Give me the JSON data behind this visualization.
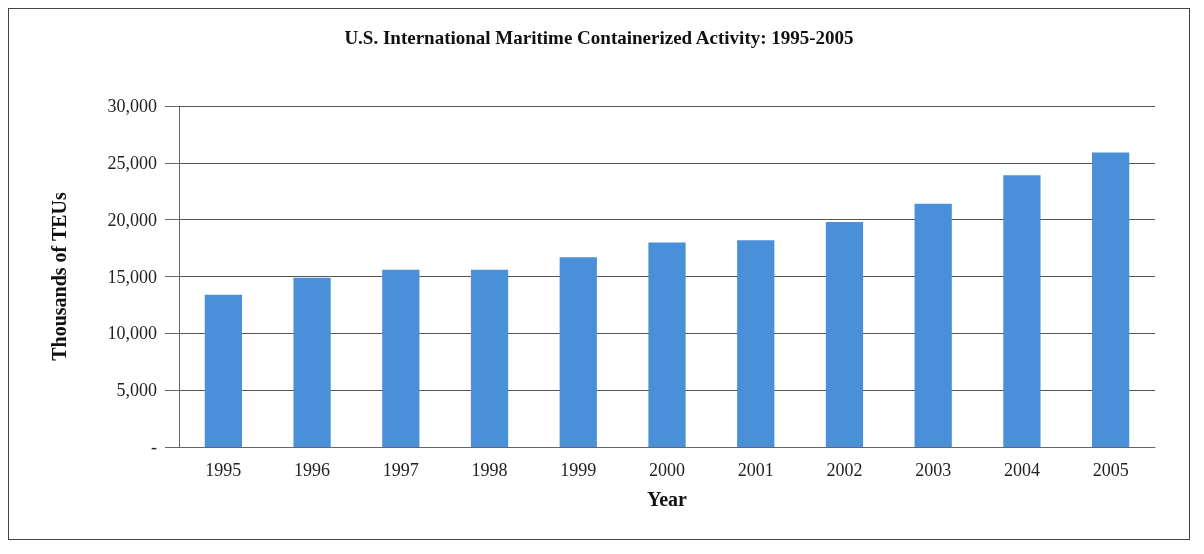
{
  "chart_data": {
    "type": "bar",
    "title": "U.S. International Maritime Containerized Activity: 1995-2005",
    "xlabel": "Year",
    "ylabel": "Thousands of TEUs",
    "categories": [
      "1995",
      "1996",
      "1997",
      "1998",
      "1999",
      "2000",
      "2001",
      "2002",
      "2003",
      "2004",
      "2005"
    ],
    "values": [
      13400,
      14900,
      15600,
      15600,
      16700,
      18000,
      18200,
      19800,
      21400,
      23900,
      25900
    ],
    "color": "#4a90d9",
    "ylim": [
      0,
      30000
    ],
    "yticks": [
      {
        "value": 0,
        "label": "-"
      },
      {
        "value": 5000,
        "label": "5,000"
      },
      {
        "value": 10000,
        "label": "10,000"
      },
      {
        "value": 15000,
        "label": "15,000"
      },
      {
        "value": 20000,
        "label": "20,000"
      },
      {
        "value": 25000,
        "label": "25,000"
      },
      {
        "value": 30000,
        "label": "30,000"
      }
    ],
    "grid": "y"
  }
}
